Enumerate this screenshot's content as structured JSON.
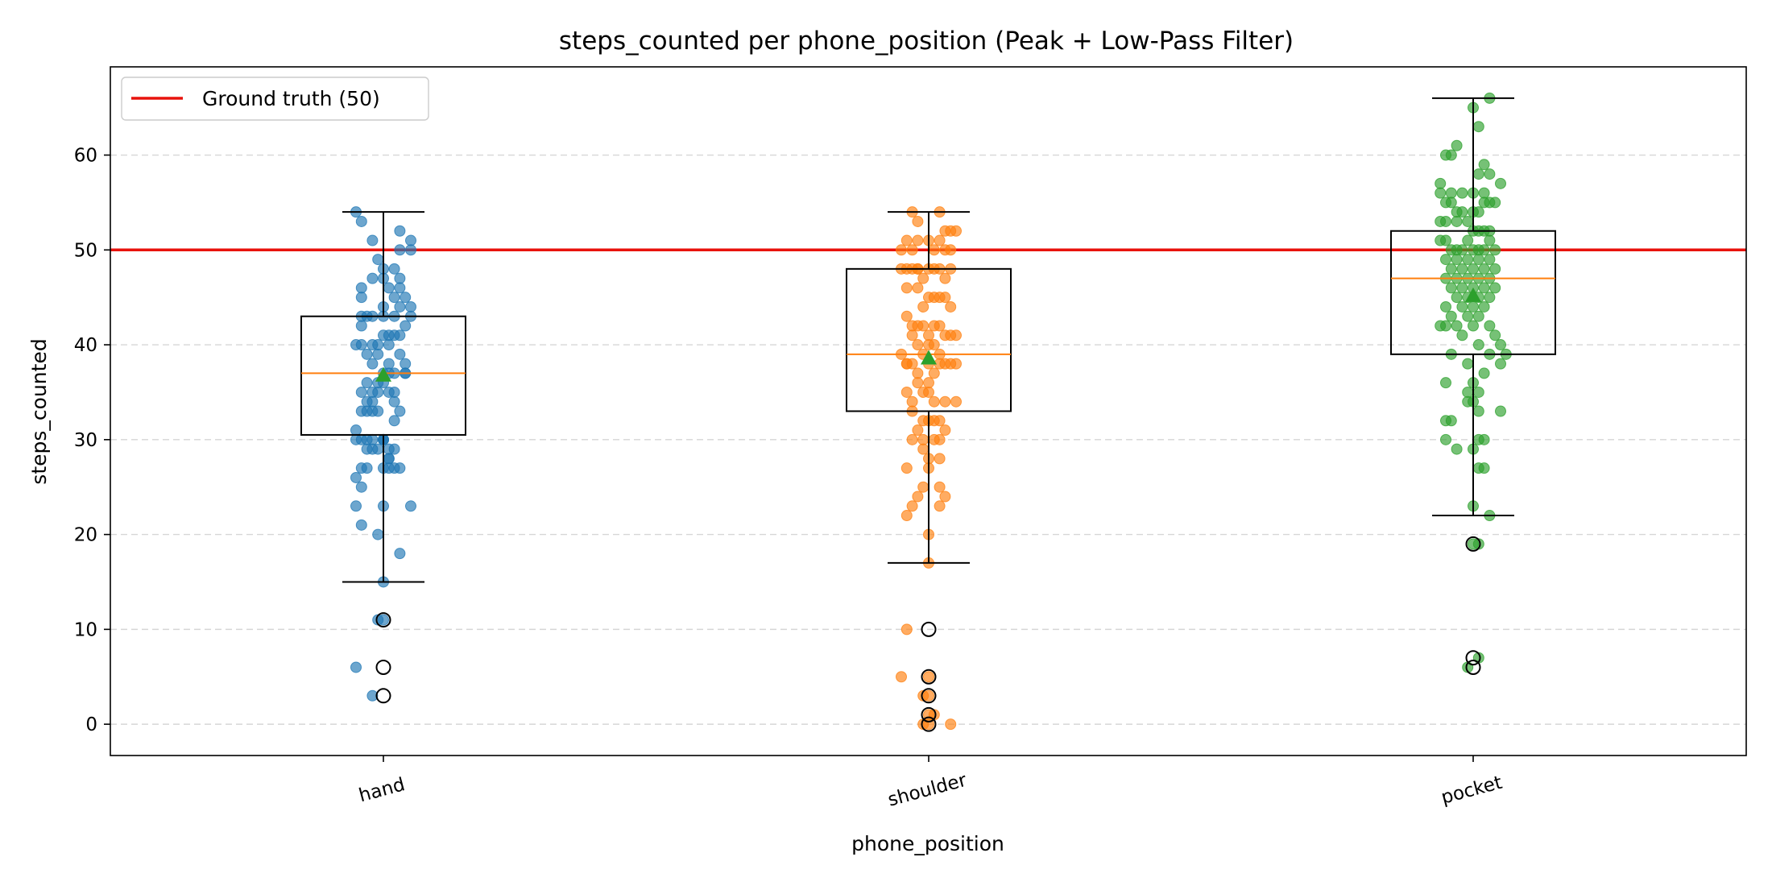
{
  "chart_data": {
    "type": "box",
    "title": "steps_counted per phone_position (Peak + Low-Pass Filter)",
    "xlabel": "phone_position",
    "ylabel": "steps_counted",
    "categories": [
      "hand",
      "shoulder",
      "pocket"
    ],
    "ylim": [
      -3.3,
      69.3
    ],
    "yticks": [
      "0",
      "10",
      "20",
      "30",
      "40",
      "50",
      "60"
    ],
    "grid": "horizontal dashed",
    "legend_position": "upper-left",
    "reference_line": {
      "label": "Ground truth (50)",
      "value": 50,
      "color": "#e8120c"
    },
    "boxes": [
      {
        "category": "hand",
        "q1": 30.5,
        "median": 37,
        "q3": 43,
        "whisker_low": 15,
        "whisker_high": 54,
        "mean": 36.8,
        "outliers": [
          11,
          6,
          3
        ]
      },
      {
        "category": "shoulder",
        "q1": 33,
        "median": 39,
        "q3": 48,
        "whisker_low": 17,
        "whisker_high": 54,
        "mean": 38.6,
        "outliers": [
          10,
          5,
          3,
          1,
          0
        ]
      },
      {
        "category": "pocket",
        "q1": 39,
        "median": 47,
        "q3": 52,
        "whisker_low": 22,
        "whisker_high": 66,
        "mean": 45.2,
        "outliers": [
          19,
          7,
          6
        ]
      }
    ],
    "points": {
      "hand": [
        [
          -0.05,
          54
        ],
        [
          -0.04,
          53
        ],
        [
          -0.02,
          51
        ],
        [
          0.03,
          52
        ],
        [
          0.05,
          51
        ],
        [
          0.05,
          50
        ],
        [
          0.03,
          50
        ],
        [
          -0.01,
          49
        ],
        [
          -0.04,
          46
        ],
        [
          -0.04,
          45
        ],
        [
          0.0,
          48
        ],
        [
          0.0,
          47
        ],
        [
          -0.02,
          47
        ],
        [
          0.01,
          46
        ],
        [
          0.02,
          45
        ],
        [
          0.03,
          46
        ],
        [
          0.04,
          45
        ],
        [
          0.02,
          48
        ],
        [
          0.03,
          44
        ],
        [
          0.05,
          44
        ],
        [
          0.04,
          42
        ],
        [
          0.05,
          43
        ],
        [
          0.03,
          47
        ],
        [
          -0.03,
          43
        ],
        [
          -0.02,
          43
        ],
        [
          -0.04,
          42
        ],
        [
          -0.05,
          40
        ],
        [
          -0.04,
          40
        ],
        [
          -0.03,
          39
        ],
        [
          -0.02,
          40
        ],
        [
          -0.01,
          40
        ],
        [
          0.0,
          43
        ],
        [
          0.0,
          44
        ],
        [
          0.01,
          41
        ],
        [
          0.01,
          40
        ],
        [
          0.02,
          43
        ],
        [
          0.02,
          41
        ],
        [
          0.03,
          41
        ],
        [
          0.03,
          39
        ],
        [
          0.04,
          38
        ],
        [
          0.04,
          37
        ],
        [
          -0.01,
          39
        ],
        [
          0.0,
          41
        ],
        [
          -0.04,
          43
        ],
        [
          0.02,
          37
        ],
        [
          -0.04,
          35
        ],
        [
          -0.03,
          36
        ],
        [
          -0.03,
          34
        ],
        [
          -0.02,
          35
        ],
        [
          -0.02,
          34
        ],
        [
          -0.01,
          35
        ],
        [
          -0.01,
          33
        ],
        [
          0.0,
          37
        ],
        [
          0.0,
          36
        ],
        [
          0.01,
          37
        ],
        [
          0.01,
          35
        ],
        [
          0.02,
          34
        ],
        [
          0.02,
          35
        ],
        [
          0.02,
          32
        ],
        [
          0.03,
          33
        ],
        [
          0.04,
          37
        ],
        [
          -0.03,
          33
        ],
        [
          -0.02,
          33
        ],
        [
          -0.01,
          36
        ],
        [
          -0.05,
          31
        ],
        [
          -0.05,
          30
        ],
        [
          -0.04,
          33
        ],
        [
          -0.04,
          30
        ],
        [
          -0.03,
          29
        ],
        [
          -0.03,
          30
        ],
        [
          -0.02,
          30
        ],
        [
          -0.01,
          29
        ],
        [
          0.0,
          30
        ],
        [
          0.0,
          30
        ],
        [
          0.01,
          29
        ],
        [
          0.01,
          28
        ],
        [
          0.02,
          29
        ],
        [
          0.01,
          28
        ],
        [
          -0.02,
          29
        ],
        [
          0.01,
          27
        ],
        [
          -0.04,
          27
        ],
        [
          -0.05,
          26
        ],
        [
          -0.04,
          25
        ],
        [
          -0.05,
          23
        ],
        [
          -0.01,
          20
        ],
        [
          0.0,
          23
        ],
        [
          -0.04,
          21
        ],
        [
          0.05,
          23
        ],
        [
          0.03,
          18
        ],
        [
          0.0,
          15
        ],
        [
          0.02,
          27
        ],
        [
          0.03,
          27
        ],
        [
          0.0,
          27
        ],
        [
          -0.03,
          27
        ],
        [
          -0.01,
          11
        ],
        [
          0.0,
          11
        ],
        [
          -0.05,
          6
        ],
        [
          -0.02,
          3
        ],
        [
          0.0,
          30
        ],
        [
          -0.02,
          38
        ],
        [
          0.01,
          38
        ]
      ],
      "shoulder": [
        [
          -0.03,
          54
        ],
        [
          -0.02,
          53
        ],
        [
          0.02,
          54
        ],
        [
          0.04,
          52
        ],
        [
          0.05,
          52
        ],
        [
          0.03,
          52
        ],
        [
          -0.04,
          51
        ],
        [
          -0.02,
          51
        ],
        [
          0.0,
          51
        ],
        [
          0.01,
          50
        ],
        [
          0.02,
          51
        ],
        [
          0.03,
          50
        ],
        [
          -0.05,
          50
        ],
        [
          -0.03,
          50
        ],
        [
          0.04,
          50
        ],
        [
          -0.05,
          48
        ],
        [
          -0.04,
          48
        ],
        [
          -0.03,
          48
        ],
        [
          -0.02,
          48
        ],
        [
          -0.02,
          48
        ],
        [
          -0.01,
          47
        ],
        [
          0.0,
          48
        ],
        [
          0.01,
          48
        ],
        [
          0.02,
          48
        ],
        [
          0.03,
          47
        ],
        [
          0.04,
          48
        ],
        [
          -0.04,
          46
        ],
        [
          -0.02,
          46
        ],
        [
          0.0,
          45
        ],
        [
          0.01,
          45
        ],
        [
          0.02,
          45
        ],
        [
          0.03,
          45
        ],
        [
          0.04,
          44
        ],
        [
          -0.01,
          44
        ],
        [
          -0.04,
          43
        ],
        [
          -0.03,
          42
        ],
        [
          -0.02,
          42
        ],
        [
          -0.01,
          42
        ],
        [
          0.0,
          41
        ],
        [
          0.01,
          42
        ],
        [
          0.02,
          42
        ],
        [
          0.03,
          41
        ],
        [
          0.04,
          41
        ],
        [
          0.05,
          41
        ],
        [
          -0.03,
          41
        ],
        [
          -0.02,
          40
        ],
        [
          0.0,
          40
        ],
        [
          0.01,
          40
        ],
        [
          0.02,
          39
        ],
        [
          -0.01,
          39
        ],
        [
          -0.05,
          39
        ],
        [
          -0.04,
          38
        ],
        [
          -0.04,
          38
        ],
        [
          -0.03,
          38
        ],
        [
          -0.02,
          37
        ],
        [
          0.0,
          38
        ],
        [
          0.01,
          37
        ],
        [
          0.02,
          38
        ],
        [
          0.03,
          38
        ],
        [
          0.04,
          38
        ],
        [
          0.05,
          38
        ],
        [
          -0.02,
          36
        ],
        [
          0.0,
          36
        ],
        [
          -0.01,
          35
        ],
        [
          0.0,
          35
        ],
        [
          0.01,
          34
        ],
        [
          0.03,
          34
        ],
        [
          0.05,
          34
        ],
        [
          -0.04,
          35
        ],
        [
          -0.03,
          34
        ],
        [
          -0.03,
          33
        ],
        [
          -0.01,
          32
        ],
        [
          0.0,
          32
        ],
        [
          0.01,
          32
        ],
        [
          0.02,
          32
        ],
        [
          0.03,
          31
        ],
        [
          -0.02,
          31
        ],
        [
          -0.01,
          30
        ],
        [
          -0.03,
          30
        ],
        [
          0.01,
          30
        ],
        [
          0.02,
          30
        ],
        [
          -0.01,
          29
        ],
        [
          0.0,
          28
        ],
        [
          0.02,
          28
        ],
        [
          -0.04,
          27
        ],
        [
          0.0,
          27
        ],
        [
          0.02,
          25
        ],
        [
          0.03,
          24
        ],
        [
          -0.01,
          25
        ],
        [
          -0.02,
          24
        ],
        [
          -0.03,
          23
        ],
        [
          -0.04,
          22
        ],
        [
          0.02,
          23
        ],
        [
          0.0,
          20
        ],
        [
          0.0,
          17
        ],
        [
          -0.04,
          10
        ],
        [
          -0.05,
          5
        ],
        [
          -0.01,
          3
        ],
        [
          0.0,
          1
        ],
        [
          0.01,
          1
        ],
        [
          -0.01,
          0
        ],
        [
          0.0,
          0
        ],
        [
          0.04,
          0
        ],
        [
          0.0,
          3
        ],
        [
          0.0,
          5
        ]
      ],
      "pocket": [
        [
          0.03,
          66
        ],
        [
          0.0,
          65
        ],
        [
          0.01,
          63
        ],
        [
          -0.03,
          61
        ],
        [
          -0.04,
          60
        ],
        [
          -0.05,
          60
        ],
        [
          0.02,
          59
        ],
        [
          0.01,
          58
        ],
        [
          0.03,
          58
        ],
        [
          0.05,
          57
        ],
        [
          -0.06,
          57
        ],
        [
          -0.06,
          56
        ],
        [
          -0.04,
          56
        ],
        [
          -0.02,
          56
        ],
        [
          0.0,
          56
        ],
        [
          0.02,
          56
        ],
        [
          -0.05,
          55
        ],
        [
          -0.04,
          55
        ],
        [
          -0.03,
          54
        ],
        [
          -0.02,
          54
        ],
        [
          0.0,
          54
        ],
        [
          0.01,
          54
        ],
        [
          0.02,
          55
        ],
        [
          0.03,
          55
        ],
        [
          0.04,
          55
        ],
        [
          -0.06,
          53
        ],
        [
          -0.05,
          53
        ],
        [
          -0.03,
          53
        ],
        [
          -0.01,
          53
        ],
        [
          0.0,
          52
        ],
        [
          0.01,
          52
        ],
        [
          0.02,
          52
        ],
        [
          0.03,
          52
        ],
        [
          -0.06,
          51
        ],
        [
          -0.05,
          51
        ],
        [
          -0.04,
          50
        ],
        [
          -0.03,
          50
        ],
        [
          -0.02,
          50
        ],
        [
          -0.01,
          51
        ],
        [
          0.0,
          50
        ],
        [
          0.01,
          50
        ],
        [
          0.02,
          50
        ],
        [
          0.03,
          51
        ],
        [
          0.04,
          50
        ],
        [
          -0.05,
          49
        ],
        [
          -0.03,
          49
        ],
        [
          -0.01,
          49
        ],
        [
          0.01,
          49
        ],
        [
          0.03,
          49
        ],
        [
          -0.04,
          48
        ],
        [
          -0.02,
          48
        ],
        [
          0.0,
          48
        ],
        [
          0.02,
          48
        ],
        [
          0.04,
          48
        ],
        [
          -0.05,
          47
        ],
        [
          -0.03,
          47
        ],
        [
          -0.01,
          47
        ],
        [
          0.01,
          47
        ],
        [
          0.03,
          47
        ],
        [
          0.04,
          46
        ],
        [
          -0.04,
          46
        ],
        [
          -0.02,
          46
        ],
        [
          0.0,
          46
        ],
        [
          0.02,
          46
        ],
        [
          -0.03,
          45
        ],
        [
          -0.01,
          45
        ],
        [
          0.01,
          45
        ],
        [
          0.03,
          45
        ],
        [
          -0.05,
          44
        ],
        [
          -0.02,
          44
        ],
        [
          0.0,
          44
        ],
        [
          0.02,
          44
        ],
        [
          -0.04,
          43
        ],
        [
          -0.01,
          43
        ],
        [
          0.01,
          43
        ],
        [
          0.03,
          42
        ],
        [
          -0.03,
          42
        ],
        [
          0.0,
          42
        ],
        [
          -0.06,
          42
        ],
        [
          -0.05,
          42
        ],
        [
          0.04,
          41
        ],
        [
          -0.02,
          41
        ],
        [
          0.01,
          40
        ],
        [
          0.05,
          40
        ],
        [
          -0.04,
          39
        ],
        [
          0.03,
          39
        ],
        [
          0.06,
          39
        ],
        [
          0.05,
          38
        ],
        [
          -0.01,
          38
        ],
        [
          0.02,
          37
        ],
        [
          -0.05,
          36
        ],
        [
          0.0,
          36
        ],
        [
          0.01,
          35
        ],
        [
          -0.01,
          35
        ],
        [
          0.0,
          34
        ],
        [
          -0.01,
          34
        ],
        [
          0.01,
          33
        ],
        [
          0.05,
          33
        ],
        [
          -0.04,
          32
        ],
        [
          -0.05,
          32
        ],
        [
          -0.05,
          30
        ],
        [
          0.01,
          30
        ],
        [
          0.02,
          30
        ],
        [
          -0.03,
          29
        ],
        [
          0.0,
          29
        ],
        [
          0.01,
          27
        ],
        [
          0.02,
          27
        ],
        [
          0.0,
          23
        ],
        [
          0.03,
          22
        ],
        [
          0.0,
          19
        ],
        [
          0.01,
          19
        ],
        [
          0.01,
          7
        ],
        [
          -0.01,
          6
        ]
      ]
    },
    "colors": {
      "hand": "#1f77b4",
      "shoulder": "#ff7f0e",
      "pocket": "#2ca02c",
      "median": "#ff7f0e",
      "mean": "#2ca02c",
      "box": "#000000",
      "grid": "#cccccc"
    }
  }
}
